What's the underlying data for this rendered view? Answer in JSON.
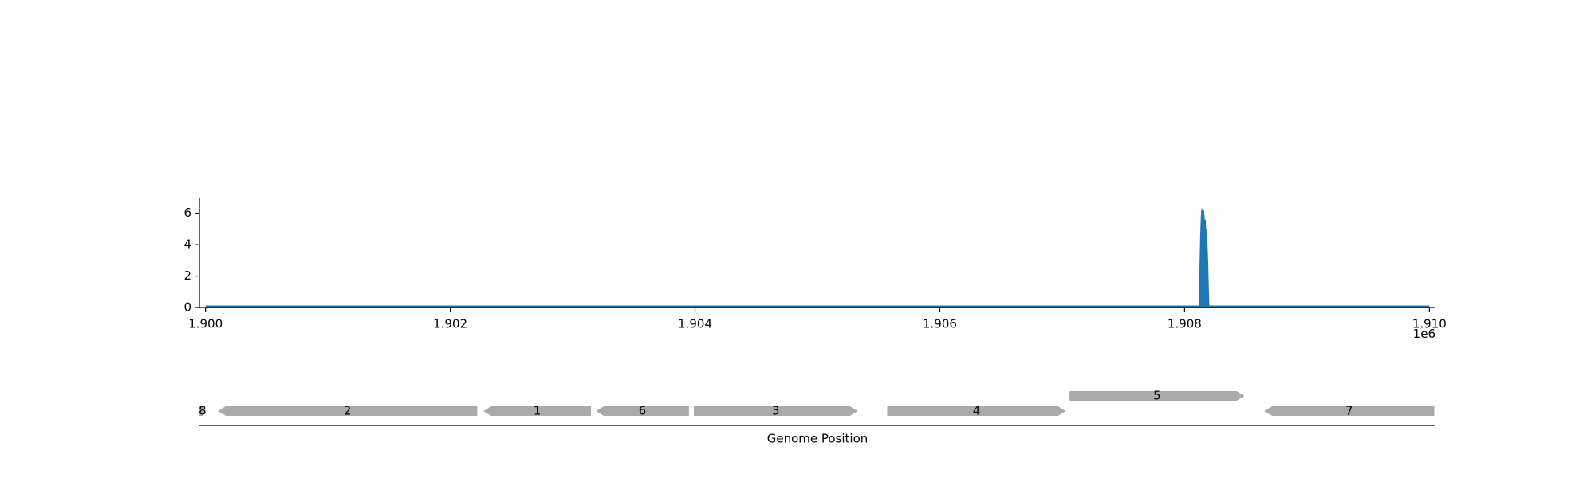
{
  "chart_data": [
    {
      "type": "area",
      "title": "",
      "xlabel": "",
      "ylabel": "",
      "x_offset_label": "1e6",
      "xlim": [
        1.89995,
        1.91005
      ],
      "ylim": [
        0,
        7
      ],
      "xticks": [
        1.9,
        1.902,
        1.904,
        1.906,
        1.908,
        1.91
      ],
      "xtick_labels": [
        "1.900",
        "1.902",
        "1.904",
        "1.906",
        "1.908",
        "1.910"
      ],
      "yticks": [
        0,
        2,
        4,
        6
      ],
      "ytick_labels": [
        "0",
        "2",
        "4",
        "6"
      ],
      "baseline_range": [
        1.9,
        1.91
      ],
      "color": "#1f77b4",
      "grid": false,
      "x": [
        1.90812,
        1.908125,
        1.90813,
        1.908135,
        1.90814,
        1.908145,
        1.90815,
        1.908155,
        1.90816,
        1.908165,
        1.90817,
        1.908175,
        1.90818,
        1.908185,
        1.90819,
        1.908195,
        1.9082
      ],
      "y": [
        0,
        2.6,
        4.4,
        5.6,
        6.3,
        6.1,
        5.9,
        6.2,
        5.8,
        5.2,
        5.6,
        4.0,
        5.0,
        3.9,
        2.8,
        1.2,
        0
      ]
    },
    {
      "type": "gene-track",
      "xlabel": "Genome Position",
      "color": "#aaaaaa",
      "genes": [
        {
          "label": "8",
          "start": 1.89995,
          "end": 1.9,
          "strand": "+",
          "row": 0
        },
        {
          "label": "2",
          "start": 1.9001,
          "end": 1.90222,
          "strand": "-",
          "row": 0
        },
        {
          "label": "1",
          "start": 1.90227,
          "end": 1.90315,
          "strand": "-",
          "row": 0
        },
        {
          "label": "6",
          "start": 1.90319,
          "end": 1.90395,
          "strand": "-",
          "row": 0
        },
        {
          "label": "3",
          "start": 1.90399,
          "end": 1.90533,
          "strand": "+",
          "row": 0
        },
        {
          "label": "4",
          "start": 1.90557,
          "end": 1.90703,
          "strand": "+",
          "row": 0
        },
        {
          "label": "5",
          "start": 1.90706,
          "end": 1.90849,
          "strand": "+",
          "row": 1
        },
        {
          "label": "7",
          "start": 1.90865,
          "end": 1.91004,
          "strand": "-",
          "row": 0
        }
      ]
    }
  ]
}
